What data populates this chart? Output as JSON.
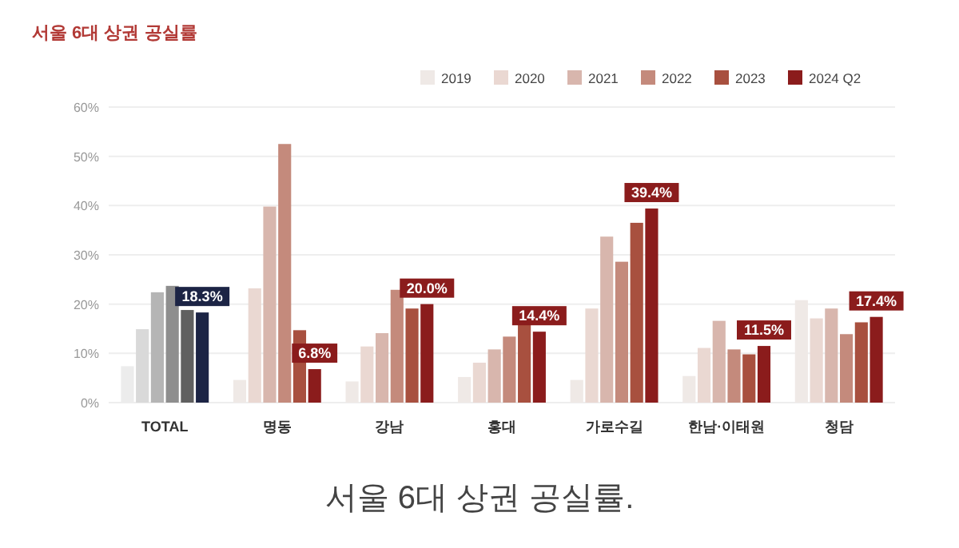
{
  "chart_data": {
    "type": "bar",
    "title": "서울 6대 상권 공실률",
    "categories": [
      "TOTAL",
      "명동",
      "강남",
      "홍대",
      "가로수길",
      "한남·이태원",
      "청담"
    ],
    "ylim": [
      0,
      60
    ],
    "yticks": [
      {
        "value": 0,
        "label": "0%"
      },
      {
        "value": 10,
        "label": "10%"
      },
      {
        "value": 20,
        "label": "20%"
      },
      {
        "value": 30,
        "label": "30%"
      },
      {
        "value": 40,
        "label": "40%"
      },
      {
        "value": 50,
        "label": "50%"
      },
      {
        "value": 60,
        "label": "60%"
      }
    ],
    "grid": "y",
    "legend": "top right",
    "series": [
      {
        "name": "2019",
        "color": "#efe9e6",
        "colors": [
          "#ececec",
          "#efe9e6",
          "#efe9e6",
          "#efe9e6",
          "#efe9e6",
          "#efe9e6",
          "#efe9e6"
        ],
        "values": [
          7.4,
          4.6,
          4.3,
          5.2,
          4.6,
          5.4,
          20.8
        ]
      },
      {
        "name": "2020",
        "color": "#ead8d2",
        "colors": [
          "#d9d9d9",
          "#ead8d2",
          "#ead8d2",
          "#ead8d2",
          "#ead8d2",
          "#ead8d2",
          "#ead8d2"
        ],
        "values": [
          14.9,
          23.2,
          11.4,
          8.1,
          19.1,
          11.1,
          17.1
        ]
      },
      {
        "name": "2021",
        "color": "#d8b6ad",
        "colors": [
          "#b5b5b5",
          "#d8b6ad",
          "#d8b6ad",
          "#d8b6ad",
          "#d8b6ad",
          "#d8b6ad",
          "#d8b6ad"
        ],
        "values": [
          22.4,
          39.8,
          14.1,
          10.8,
          33.7,
          16.6,
          19.1
        ]
      },
      {
        "name": "2022",
        "color": "#c48a7c",
        "colors": [
          "#8e8e8e",
          "#c48a7c",
          "#c48a7c",
          "#c48a7c",
          "#c48a7c",
          "#c48a7c",
          "#c48a7c"
        ],
        "values": [
          23.7,
          52.5,
          22.9,
          13.4,
          28.6,
          10.8,
          13.9
        ]
      },
      {
        "name": "2023",
        "color": "#a8503f",
        "colors": [
          "#606060",
          "#a8503f",
          "#a8503f",
          "#a8503f",
          "#a8503f",
          "#a8503f",
          "#a8503f"
        ],
        "values": [
          18.8,
          14.7,
          19.1,
          16.0,
          36.5,
          9.8,
          16.3
        ]
      },
      {
        "name": "2024 Q2",
        "color": "#8b1c1c",
        "colors": [
          "#1c2445",
          "#8b1c1c",
          "#8b1c1c",
          "#8b1c1c",
          "#8b1c1c",
          "#8b1c1c",
          "#8b1c1c"
        ],
        "values": [
          18.3,
          6.8,
          20.0,
          14.4,
          39.4,
          11.5,
          17.4
        ],
        "value_labels": [
          "18.3%",
          "6.8%",
          "20.0%",
          "14.4%",
          "39.4%",
          "11.5%",
          "17.4%"
        ]
      }
    ],
    "annotations": [
      "서울 6대 상권 공실률."
    ]
  }
}
